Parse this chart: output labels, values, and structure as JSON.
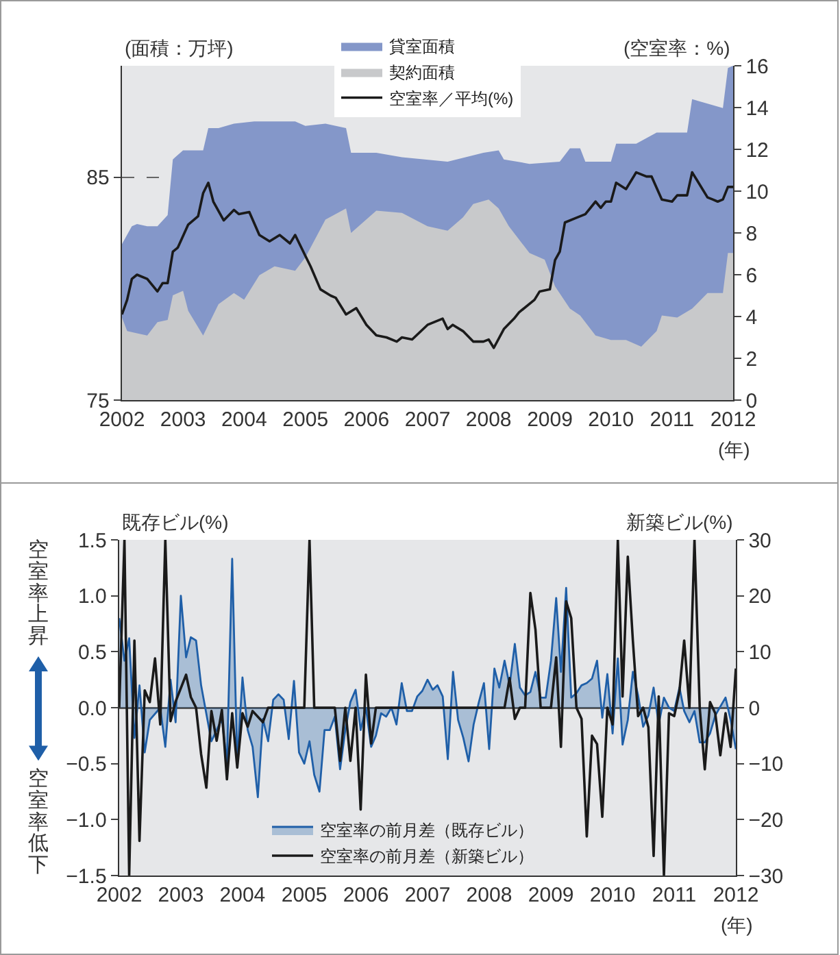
{
  "chart_data": [
    {
      "type": "area",
      "ylabel": "(面積：万坪)",
      "y2label": "(空室率：%)",
      "xlabel": "(年)",
      "xlim": [
        "2002-01",
        "2012-01"
      ],
      "xticks": [
        "2002",
        "2003",
        "2004",
        "2005",
        "2006",
        "2007",
        "2008",
        "2009",
        "2010",
        "2011",
        "2012"
      ],
      "ylim": [
        75,
        90
      ],
      "yticks": [
        75,
        85
      ],
      "y2lim": [
        0,
        16
      ],
      "y2ticks": [
        0,
        2,
        4,
        6,
        8,
        10,
        12,
        14,
        16
      ],
      "grid": "y",
      "legend": "top",
      "series": [
        {
          "name": "貸室面積",
          "color": "#8497c9",
          "x": [
            "2002-01",
            "2002-03",
            "2002-04",
            "2002-06",
            "2002-08",
            "2002-10",
            "2002-11",
            "2003-01",
            "2003-05",
            "2003-06",
            "2003-08",
            "2003-11",
            "2004-03",
            "2004-11",
            "2005-01",
            "2005-05",
            "2005-09",
            "2005-10",
            "2006-03",
            "2006-08",
            "2007-05",
            "2007-12",
            "2008-03",
            "2008-04",
            "2008-09",
            "2009-03",
            "2009-05",
            "2009-07",
            "2009-08",
            "2010-01",
            "2010-02",
            "2010-06",
            "2010-10",
            "2011-04",
            "2011-05",
            "2011-08",
            "2011-11",
            "2011-12",
            "2012-01"
          ],
          "values": [
            82.0,
            82.8,
            82.9,
            82.8,
            82.8,
            83.3,
            85.8,
            86.2,
            86.2,
            87.2,
            87.2,
            87.4,
            87.5,
            87.5,
            87.3,
            87.4,
            87.2,
            86.1,
            86.1,
            85.9,
            85.7,
            86.1,
            86.2,
            85.8,
            85.6,
            85.7,
            86.3,
            86.3,
            85.7,
            85.7,
            86.5,
            86.5,
            87.0,
            87.0,
            88.5,
            88.3,
            88.1,
            89.9,
            90.0
          ]
        },
        {
          "name": "契約面積",
          "color": "#c8c9cb",
          "x": [
            "2002-01",
            "2002-02",
            "2002-04",
            "2002-06",
            "2002-08",
            "2002-10",
            "2002-11",
            "2003-01",
            "2003-02",
            "2003-05",
            "2003-08",
            "2003-11",
            "2004-01",
            "2004-04",
            "2004-07",
            "2004-11",
            "2005-01",
            "2005-05",
            "2005-09",
            "2005-10",
            "2006-03",
            "2006-08",
            "2007-01",
            "2007-05",
            "2007-08",
            "2007-10",
            "2008-01",
            "2008-03",
            "2008-05",
            "2008-09",
            "2008-12",
            "2009-02",
            "2009-05",
            "2009-07",
            "2009-10",
            "2010-01",
            "2010-04",
            "2010-07",
            "2010-10",
            "2010-11",
            "2011-02",
            "2011-05",
            "2011-08",
            "2011-11",
            "2011-12",
            "2012-01"
          ],
          "values": [
            78.7,
            78.1,
            78.0,
            77.9,
            78.5,
            78.6,
            79.7,
            79.9,
            79.0,
            77.9,
            79.3,
            79.8,
            79.5,
            80.6,
            81.0,
            80.8,
            81.4,
            83.1,
            83.6,
            82.5,
            83.5,
            83.4,
            82.8,
            82.6,
            83.2,
            83.8,
            84.0,
            83.6,
            82.8,
            81.6,
            81.3,
            80.1,
            79.1,
            78.8,
            77.9,
            77.7,
            77.7,
            77.4,
            78.1,
            78.8,
            78.7,
            79.1,
            79.8,
            79.8,
            81.6,
            81.6
          ]
        },
        {
          "name": "空室率／平均(%)",
          "type": "line",
          "axis": "y2",
          "color": "#1a1a1a",
          "x": [
            "2002-01",
            "2002-02",
            "2002-03",
            "2002-04",
            "2002-06",
            "2002-08",
            "2002-09",
            "2002-10",
            "2002-11",
            "2002-12",
            "2003-02",
            "2003-04",
            "2003-05",
            "2003-06",
            "2003-07",
            "2003-09",
            "2003-11",
            "2003-12",
            "2004-02",
            "2004-04",
            "2004-06",
            "2004-08",
            "2004-10",
            "2004-11",
            "2005-01",
            "2005-02",
            "2005-04",
            "2005-06",
            "2005-07",
            "2005-09",
            "2005-11",
            "2006-01",
            "2006-03",
            "2006-05",
            "2006-07",
            "2006-08",
            "2006-10",
            "2007-01",
            "2007-04",
            "2007-05",
            "2007-06",
            "2007-08",
            "2007-10",
            "2007-12",
            "2008-01",
            "2008-02",
            "2008-04",
            "2008-06",
            "2008-07",
            "2008-10",
            "2008-11",
            "2009-01",
            "2009-02",
            "2009-03",
            "2009-04",
            "2009-06",
            "2009-08",
            "2009-10",
            "2009-11",
            "2009-12",
            "2010-01",
            "2010-02",
            "2010-04",
            "2010-06",
            "2010-08",
            "2010-09",
            "2010-11",
            "2011-01",
            "2011-02",
            "2011-04",
            "2011-05",
            "2011-06",
            "2011-08",
            "2011-09",
            "2011-10",
            "2011-11",
            "2011-12",
            "2012-01"
          ],
          "values": [
            4.1,
            4.8,
            5.8,
            6.0,
            5.8,
            5.2,
            5.6,
            5.6,
            7.1,
            7.3,
            8.4,
            8.8,
            9.9,
            10.4,
            9.5,
            8.6,
            9.1,
            8.9,
            9.0,
            7.9,
            7.6,
            7.9,
            7.5,
            7.9,
            6.9,
            6.4,
            5.3,
            5.0,
            4.9,
            4.1,
            4.4,
            3.6,
            3.1,
            3.0,
            2.8,
            3.0,
            2.9,
            3.6,
            3.9,
            3.4,
            3.6,
            3.3,
            2.8,
            2.8,
            2.9,
            2.5,
            3.4,
            3.9,
            4.2,
            4.8,
            5.2,
            5.3,
            6.7,
            7.1,
            8.5,
            8.7,
            8.9,
            9.5,
            9.2,
            9.5,
            9.5,
            10.4,
            10.1,
            10.9,
            10.7,
            10.7,
            9.6,
            9.5,
            9.8,
            9.8,
            10.9,
            10.5,
            9.7,
            9.6,
            9.5,
            9.6,
            10.2,
            10.2
          ]
        }
      ]
    },
    {
      "type": "area",
      "ylabel": "既存ビル(%)",
      "y2label": "新築ビル(%)",
      "xlabel": "(年)",
      "annotations": [
        "空室率上昇",
        "空室率低下"
      ],
      "xlim": [
        "2002-01",
        "2012-01"
      ],
      "xticks": [
        "2002",
        "2003",
        "2004",
        "2005",
        "2006",
        "2007",
        "2008",
        "2009",
        "2010",
        "2011",
        "2012"
      ],
      "ylim": [
        -1.5,
        1.5
      ],
      "yticks": [
        {
          "value": -1.5,
          "label": "−1.5"
        },
        {
          "value": -1,
          "label": "−1.0"
        },
        {
          "value": -0.5,
          "label": "−0.5"
        },
        {
          "value": 0,
          "label": "0.0"
        },
        0.5,
        {
          "value": 1,
          "label": "1.0"
        },
        1.5
      ],
      "y2lim": [
        -30,
        30
      ],
      "y2ticks": [
        {
          "value": -30,
          "label": "−30"
        },
        {
          "value": -20,
          "label": "−20"
        },
        {
          "value": -10,
          "label": "−10"
        },
        0,
        10,
        20,
        30
      ],
      "legend": "bottom",
      "series": [
        {
          "name": "空室率の前月差（既存ビル）",
          "color": "#1f5fa8",
          "x": [
            "2002-01",
            "2002-02",
            "2002-03",
            "2002-04",
            "2002-05",
            "2002-06",
            "2002-07",
            "2002-09",
            "2002-10",
            "2002-11",
            "2002-12",
            "2003-01",
            "2003-02",
            "2003-03",
            "2003-04",
            "2003-05",
            "2003-07",
            "2003-08",
            "2003-09",
            "2003-10",
            "2003-11",
            "2003-12",
            "2004-01",
            "2004-02",
            "2004-03",
            "2004-04",
            "2004-05",
            "2004-06",
            "2004-07",
            "2004-08",
            "2004-09",
            "2004-10",
            "2004-11",
            "2004-12",
            "2005-01",
            "2005-02",
            "2005-03",
            "2005-04",
            "2005-05",
            "2005-06",
            "2005-07",
            "2005-08",
            "2005-09",
            "2005-10",
            "2005-11",
            "2005-12",
            "2006-01",
            "2006-02",
            "2006-03",
            "2006-04",
            "2006-05",
            "2006-06",
            "2006-07",
            "2006-08",
            "2006-09",
            "2006-10",
            "2006-11",
            "2006-12",
            "2007-01",
            "2007-02",
            "2007-03",
            "2007-04",
            "2007-05",
            "2007-06",
            "2007-07",
            "2007-08",
            "2007-09",
            "2007-10",
            "2007-11",
            "2007-12",
            "2008-01",
            "2008-02",
            "2008-03",
            "2008-04",
            "2008-05",
            "2008-06",
            "2008-07",
            "2008-08",
            "2008-09",
            "2008-10",
            "2008-11",
            "2008-12",
            "2009-01",
            "2009-02",
            "2009-03",
            "2009-04",
            "2009-05",
            "2009-06",
            "2009-07",
            "2009-08",
            "2009-09",
            "2009-10",
            "2009-11",
            "2009-12",
            "2010-01",
            "2010-02",
            "2010-03",
            "2010-04",
            "2010-05",
            "2010-06",
            "2010-07",
            "2010-08",
            "2010-09",
            "2010-10",
            "2010-11",
            "2010-12",
            "2011-01",
            "2011-02",
            "2011-03",
            "2011-04",
            "2011-05",
            "2011-06",
            "2011-07",
            "2011-08",
            "2011-09",
            "2011-10",
            "2011-11",
            "2011-12",
            "2012-01"
          ],
          "values": [
            0.8,
            0.42,
            0.62,
            -0.27,
            0.2,
            -0.4,
            -0.11,
            0.0,
            -0.35,
            0.25,
            -0.13,
            1.0,
            0.45,
            0.63,
            0.6,
            0.2,
            -0.3,
            -0.2,
            -0.1,
            -0.5,
            1.33,
            -0.5,
            0.27,
            -0.2,
            -0.35,
            -0.8,
            -0.1,
            -0.3,
            0.07,
            0.12,
            0.07,
            -0.28,
            0.24,
            -0.4,
            -0.5,
            -0.3,
            -0.6,
            -0.75,
            -0.2,
            -0.2,
            -0.08,
            -0.55,
            -0.2,
            0.05,
            0.16,
            -0.2,
            0.0,
            -0.35,
            -0.25,
            -0.05,
            -0.08,
            0.0,
            -0.15,
            0.22,
            -0.03,
            -0.03,
            0.1,
            0.15,
            0.25,
            0.16,
            0.2,
            0.1,
            -0.46,
            0.32,
            -0.11,
            -0.27,
            -0.48,
            -0.15,
            0.05,
            0.22,
            -0.37,
            0.35,
            0.18,
            0.42,
            0.2,
            0.57,
            0.18,
            0.11,
            0.14,
            0.32,
            0.09,
            0.09,
            0.42,
            0.98,
            0.32,
            1.07,
            0.09,
            0.13,
            0.2,
            0.22,
            0.26,
            0.42,
            -0.09,
            0.3,
            -0.23,
            0.44,
            -0.33,
            -0.11,
            0.32,
            0.11,
            -0.17,
            -0.07,
            0.18,
            -0.15,
            0.09,
            0.0,
            -0.03,
            0.18,
            -0.03,
            -0.13,
            -0.03,
            -0.31,
            -0.31,
            -0.23,
            -0.07,
            0.01,
            0.09,
            -0.11,
            -0.37
          ]
        },
        {
          "name": "空室率の前月差（新築ビル）",
          "type": "line",
          "axis": "y2",
          "color": "#1a1a1a",
          "x": [
            "2002-01",
            "2002-02",
            "2002-03",
            "2002-04",
            "2002-05",
            "2002-06",
            "2002-07",
            "2002-08",
            "2002-09",
            "2002-10",
            "2002-11",
            "2002-12",
            "2003-02",
            "2003-03",
            "2003-04",
            "2003-05",
            "2003-06",
            "2003-07",
            "2003-08",
            "2003-09",
            "2003-10",
            "2003-11",
            "2003-12",
            "2004-01",
            "2004-02",
            "2004-03",
            "2004-05",
            "2004-06",
            "2005-01",
            "2005-02",
            "2005-03",
            "2005-07",
            "2005-08",
            "2005-09",
            "2005-10",
            "2005-11",
            "2005-12",
            "2006-01",
            "2006-02",
            "2006-03",
            "2008-04",
            "2008-05",
            "2008-06",
            "2008-07",
            "2008-08",
            "2008-09",
            "2008-10",
            "2008-11",
            "2009-01",
            "2009-02",
            "2009-03",
            "2009-04",
            "2009-05",
            "2009-06",
            "2009-07",
            "2009-08",
            "2009-09",
            "2009-10",
            "2009-11",
            "2009-12",
            "2010-01",
            "2010-02",
            "2010-03",
            "2010-04",
            "2010-05",
            "2010-06",
            "2010-07",
            "2010-08",
            "2010-09",
            "2010-10",
            "2010-11",
            "2010-12",
            "2011-01",
            "2011-02",
            "2011-03",
            "2011-04",
            "2011-05",
            "2011-06",
            "2011-07",
            "2011-08",
            "2011-09",
            "2011-10",
            "2011-11",
            "2011-12",
            "2012-01"
          ],
          "values": [
            0,
            30,
            -30,
            12,
            -23.8,
            3.1,
            1,
            8.8,
            -3,
            30,
            -2.4,
            1.1,
            5.9,
            1.9,
            0,
            -8.3,
            -14.3,
            -0.6,
            -5.9,
            -0.4,
            -12.8,
            -1,
            -10.7,
            -1,
            -3.4,
            -0.6,
            -2.6,
            0,
            0,
            30,
            0,
            0,
            -9.5,
            0,
            -9.5,
            0,
            -18.2,
            5.9,
            -6.4,
            0,
            0,
            5.3,
            -2,
            0,
            0,
            20.5,
            14,
            0,
            0,
            9,
            -7,
            19,
            16,
            0,
            -2,
            -23,
            -5,
            -6.5,
            -19.5,
            0,
            -3,
            30,
            2,
            27,
            12,
            -1.5,
            0,
            -3.5,
            -26.5,
            2,
            -30,
            -1,
            -1.5,
            3,
            12,
            0,
            30,
            0,
            -11,
            1,
            -1,
            -8.5,
            -1,
            -7,
            7
          ]
        }
      ]
    }
  ]
}
